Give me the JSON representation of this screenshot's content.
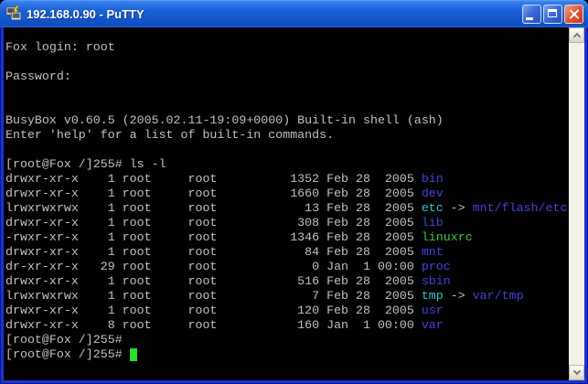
{
  "window": {
    "title": "192.168.0.90 - PuTTY",
    "controls": {
      "minimize": "minimize",
      "maximize": "maximize",
      "close": "close"
    }
  },
  "colors": {
    "terminal_bg": "#000000",
    "terminal_fg": "#c2c2c2",
    "directory": "#4444dd",
    "symlink": "#35c4c4",
    "executable": "#3ecc3e",
    "cursor": "#2ade2a"
  },
  "terminal": {
    "pre_lines": [
      "Fox login: root",
      "",
      "Password:",
      "",
      "",
      "BusyBox v0.60.5 (2005.02.11-19:09+0000) Built-in shell (ash)",
      "Enter 'help' for a list of built-in commands.",
      "",
      "[root@Fox /]255# ls -l"
    ],
    "listing": [
      {
        "perms": "drwxr-xr-x",
        "links": "1",
        "owner": "root",
        "group": "root",
        "size": "1352",
        "date": "Feb 28  2005",
        "name": "bin",
        "type": "directory"
      },
      {
        "perms": "drwxr-xr-x",
        "links": "1",
        "owner": "root",
        "group": "root",
        "size": "1660",
        "date": "Feb 28  2005",
        "name": "dev",
        "type": "directory"
      },
      {
        "perms": "lrwxrwxrwx",
        "links": "1",
        "owner": "root",
        "group": "root",
        "size": "13",
        "date": "Feb 28  2005",
        "name": "etc",
        "type": "symlink",
        "link_target": "mnt/flash/etc"
      },
      {
        "perms": "drwxr-xr-x",
        "links": "1",
        "owner": "root",
        "group": "root",
        "size": "308",
        "date": "Feb 28  2005",
        "name": "lib",
        "type": "directory"
      },
      {
        "perms": "-rwxr-xr-x",
        "links": "1",
        "owner": "root",
        "group": "root",
        "size": "1346",
        "date": "Feb 28  2005",
        "name": "linuxrc",
        "type": "executable"
      },
      {
        "perms": "drwxr-xr-x",
        "links": "1",
        "owner": "root",
        "group": "root",
        "size": "84",
        "date": "Feb 28  2005",
        "name": "mnt",
        "type": "directory"
      },
      {
        "perms": "dr-xr-xr-x",
        "links": "29",
        "owner": "root",
        "group": "root",
        "size": "0",
        "date": "Jan  1 00:00",
        "name": "proc",
        "type": "directory"
      },
      {
        "perms": "drwxr-xr-x",
        "links": "1",
        "owner": "root",
        "group": "root",
        "size": "516",
        "date": "Feb 28  2005",
        "name": "sbin",
        "type": "directory"
      },
      {
        "perms": "lrwxrwxrwx",
        "links": "1",
        "owner": "root",
        "group": "root",
        "size": "7",
        "date": "Feb 28  2005",
        "name": "tmp",
        "type": "symlink",
        "link_target": "var/tmp"
      },
      {
        "perms": "drwxr-xr-x",
        "links": "1",
        "owner": "root",
        "group": "root",
        "size": "120",
        "date": "Feb 28  2005",
        "name": "usr",
        "type": "directory"
      },
      {
        "perms": "drwxr-xr-x",
        "links": "8",
        "owner": "root",
        "group": "root",
        "size": "160",
        "date": "Jan  1 00:00",
        "name": "var",
        "type": "directory"
      }
    ],
    "post_lines": [
      "[root@Fox /]255#"
    ],
    "prompt": "[root@Fox /]255# ",
    "link_arrow": "->"
  },
  "scrollbar": {
    "up_button": "scroll up",
    "down_button": "scroll down"
  }
}
